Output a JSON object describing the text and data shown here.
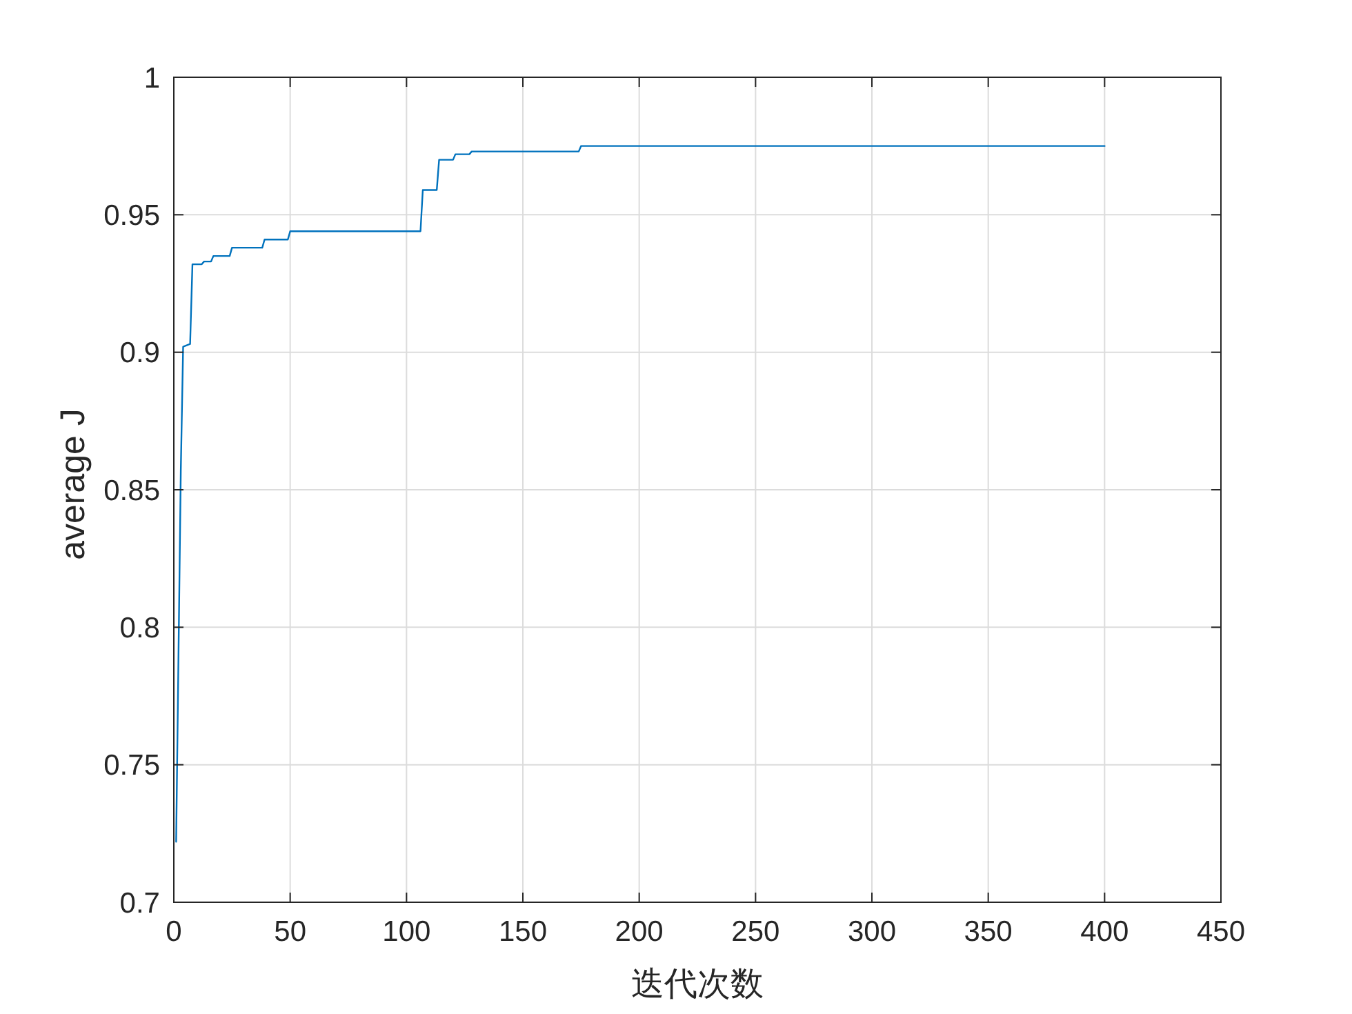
{
  "chart_data": {
    "type": "line",
    "xlabel": "迭代次数",
    "ylabel": "average J",
    "xlim": [
      0,
      450
    ],
    "xticks": [
      0,
      50,
      100,
      150,
      200,
      250,
      300,
      350,
      400,
      450
    ],
    "ylim": [
      0.7,
      1
    ],
    "yticks": [
      0.7,
      0.75,
      0.8,
      0.85,
      0.9,
      0.95,
      1
    ],
    "grid": true,
    "series": [
      {
        "color": "#0072bd",
        "x": [
          1,
          3,
          4,
          7,
          8,
          12,
          13,
          16,
          17,
          24,
          25,
          38,
          39,
          49,
          50,
          106,
          107,
          113,
          114,
          120,
          121,
          127,
          128,
          174,
          175,
          400
        ],
        "values": [
          0.722,
          0.857,
          0.902,
          0.903,
          0.932,
          0.932,
          0.933,
          0.933,
          0.935,
          0.935,
          0.938,
          0.938,
          0.941,
          0.941,
          0.944,
          0.944,
          0.959,
          0.959,
          0.97,
          0.97,
          0.972,
          0.972,
          0.973,
          0.973,
          0.975,
          0.975
        ]
      }
    ]
  }
}
